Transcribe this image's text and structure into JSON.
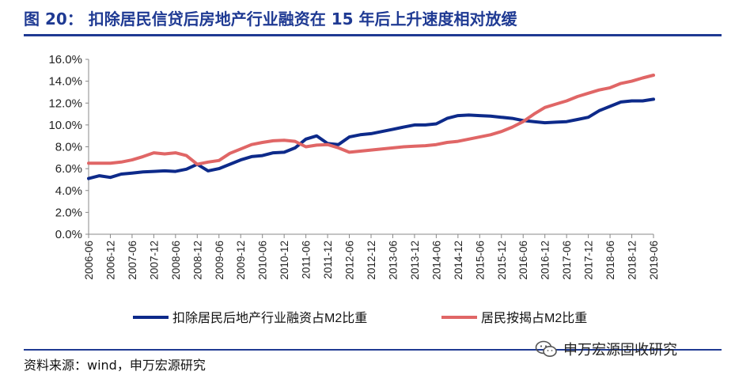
{
  "title": "图 20：  扣除居民信贷后房地产行业融资在 15 年后上升速度相对放缓",
  "source": "资料来源：wind，申万宏源研究",
  "watermark": "申万宏源固收研究",
  "watermark_icon": "wechat-icon",
  "colors": {
    "title": "#1f3a93",
    "series1": "#0d2a8a",
    "series2": "#e06666"
  },
  "chart_data": {
    "type": "line",
    "title": "",
    "xlabel": "",
    "ylabel": "",
    "ylim": [
      0,
      16
    ],
    "yticks": [
      0,
      2,
      4,
      6,
      8,
      10,
      12,
      14,
      16
    ],
    "ytick_labels": [
      "0.0%",
      "2.0%",
      "4.0%",
      "6.0%",
      "8.0%",
      "10.0%",
      "12.0%",
      "14.0%",
      "16.0%"
    ],
    "grid": false,
    "legend": "bottom",
    "x": [
      "2006-06",
      "2006-09",
      "2006-12",
      "2007-03",
      "2007-06",
      "2007-09",
      "2007-12",
      "2008-03",
      "2008-06",
      "2008-09",
      "2008-12",
      "2009-03",
      "2009-06",
      "2009-09",
      "2009-12",
      "2010-03",
      "2010-06",
      "2010-09",
      "2010-12",
      "2011-03",
      "2011-06",
      "2011-09",
      "2011-12",
      "2012-03",
      "2012-06",
      "2012-09",
      "2012-12",
      "2013-03",
      "2013-06",
      "2013-09",
      "2013-12",
      "2014-03",
      "2014-06",
      "2014-09",
      "2014-12",
      "2015-03",
      "2015-06",
      "2015-09",
      "2015-12",
      "2016-03",
      "2016-06",
      "2016-09",
      "2016-12",
      "2017-03",
      "2017-06",
      "2017-09",
      "2017-12",
      "2018-03",
      "2018-06",
      "2018-09",
      "2018-12",
      "2019-03",
      "2019-06"
    ],
    "xtick_labels": [
      "2006-06",
      "2006-12",
      "2007-06",
      "2007-12",
      "2008-06",
      "2008-12",
      "2009-06",
      "2009-12",
      "2010-06",
      "2010-12",
      "2011-06",
      "2011-12",
      "2012-06",
      "2012-12",
      "2013-06",
      "2013-12",
      "2014-06",
      "2014-12",
      "2015-06",
      "2015-12",
      "2016-06",
      "2016-12",
      "2017-06",
      "2017-12",
      "2018-06",
      "2018-12",
      "2019-06"
    ],
    "series": [
      {
        "name": "扣除居民后地产行业融资占M2比重",
        "color": "#0d2a8a",
        "values": [
          5.1,
          5.35,
          5.2,
          5.5,
          5.6,
          5.7,
          5.75,
          5.8,
          5.75,
          5.95,
          6.4,
          5.8,
          6.0,
          6.4,
          6.8,
          7.1,
          7.2,
          7.45,
          7.5,
          7.9,
          8.7,
          9.0,
          8.3,
          8.2,
          8.9,
          9.1,
          9.2,
          9.4,
          9.6,
          9.8,
          10.0,
          10.0,
          10.1,
          10.6,
          10.85,
          10.9,
          10.85,
          10.8,
          10.7,
          10.6,
          10.4,
          10.3,
          10.2,
          10.25,
          10.3,
          10.5,
          10.7,
          11.3,
          11.7,
          12.1,
          12.2,
          12.2,
          12.35
        ]
      },
      {
        "name": "居民按揭占M2比重",
        "color": "#e06666",
        "values": [
          6.5,
          6.5,
          6.5,
          6.6,
          6.8,
          7.1,
          7.45,
          7.35,
          7.45,
          7.2,
          6.4,
          6.6,
          6.75,
          7.4,
          7.8,
          8.2,
          8.4,
          8.55,
          8.6,
          8.5,
          8.0,
          8.15,
          8.2,
          7.9,
          7.5,
          7.6,
          7.7,
          7.8,
          7.9,
          8.0,
          8.05,
          8.1,
          8.2,
          8.4,
          8.5,
          8.7,
          8.9,
          9.1,
          9.4,
          9.8,
          10.3,
          11.0,
          11.6,
          11.9,
          12.2,
          12.6,
          12.9,
          13.2,
          13.4,
          13.8,
          14.0,
          14.3,
          14.55
        ]
      }
    ]
  }
}
